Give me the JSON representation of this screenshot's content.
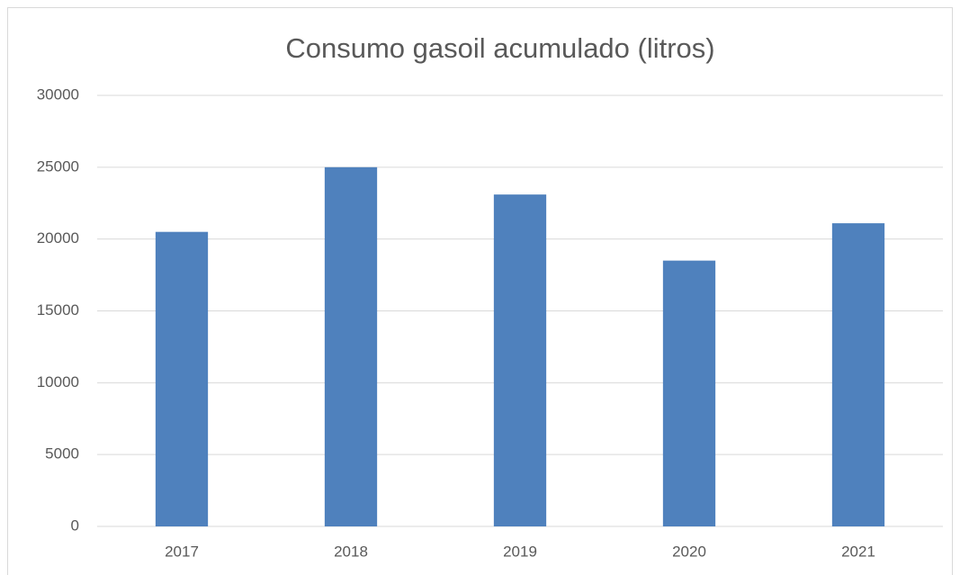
{
  "chart_data": {
    "type": "bar",
    "title": "Consumo gasoil acumulado (litros)",
    "categories": [
      "2017",
      "2018",
      "2019",
      "2020",
      "2021"
    ],
    "values": [
      20500,
      25000,
      23100,
      18500,
      21100
    ],
    "color": "#4f81bd",
    "ylim": [
      0,
      30000
    ],
    "yticks": [
      0,
      5000,
      10000,
      15000,
      20000,
      25000,
      30000
    ],
    "grid": true
  }
}
